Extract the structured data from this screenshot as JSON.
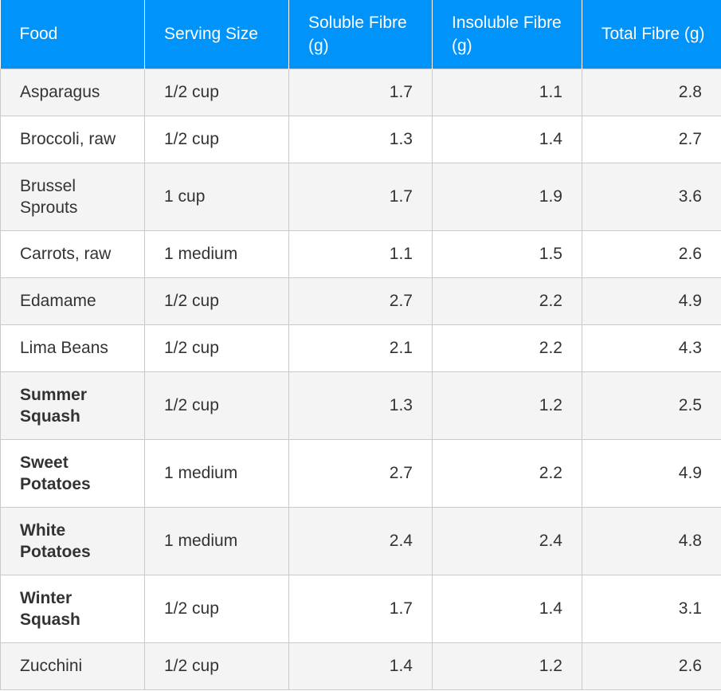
{
  "header": {
    "food": "Food",
    "serving": "Serving Size",
    "soluble": "Soluble Fibre (g)",
    "insoluble": "Insoluble Fibre (g)",
    "total": "Total Fibre (g)"
  },
  "colors": {
    "header_bg": "#0094fb",
    "row_alt": "#f4f4f4",
    "border": "#c9c9c9"
  },
  "rows": [
    {
      "food": "Asparagus",
      "serving": "1/2 cup",
      "soluble": "1.7",
      "insoluble": "1.1",
      "total": "2.8",
      "bold": false
    },
    {
      "food": "Broccoli, raw",
      "serving": "1/2 cup",
      "soluble": "1.3",
      "insoluble": "1.4",
      "total": "2.7",
      "bold": false
    },
    {
      "food": "Brussel Sprouts",
      "serving": "1 cup",
      "soluble": "1.7",
      "insoluble": "1.9",
      "total": "3.6",
      "bold": false
    },
    {
      "food": "Carrots, raw",
      "serving": "1 medium",
      "soluble": "1.1",
      "insoluble": "1.5",
      "total": "2.6",
      "bold": false
    },
    {
      "food": "Edamame",
      "serving": "1/2 cup",
      "soluble": "2.7",
      "insoluble": "2.2",
      "total": "4.9",
      "bold": false
    },
    {
      "food": "Lima Beans",
      "serving": "1/2 cup",
      "soluble": "2.1",
      "insoluble": "2.2",
      "total": "4.3",
      "bold": false
    },
    {
      "food": "Summer Squash",
      "serving": "1/2 cup",
      "soluble": "1.3",
      "insoluble": "1.2",
      "total": "2.5",
      "bold": true
    },
    {
      "food": "Sweet Potatoes",
      "serving": "1 medium",
      "soluble": "2.7",
      "insoluble": "2.2",
      "total": "4.9",
      "bold": true
    },
    {
      "food": "White Potatoes",
      "serving": "1 medium",
      "soluble": "2.4",
      "insoluble": "2.4",
      "total": "4.8",
      "bold": true
    },
    {
      "food": "Winter Squash",
      "serving": "1/2 cup",
      "soluble": "1.7",
      "insoluble": "1.4",
      "total": "3.1",
      "bold": true
    },
    {
      "food": "Zucchini",
      "serving": "1/2 cup",
      "soluble": "1.4",
      "insoluble": "1.2",
      "total": "2.6",
      "bold": false
    }
  ]
}
